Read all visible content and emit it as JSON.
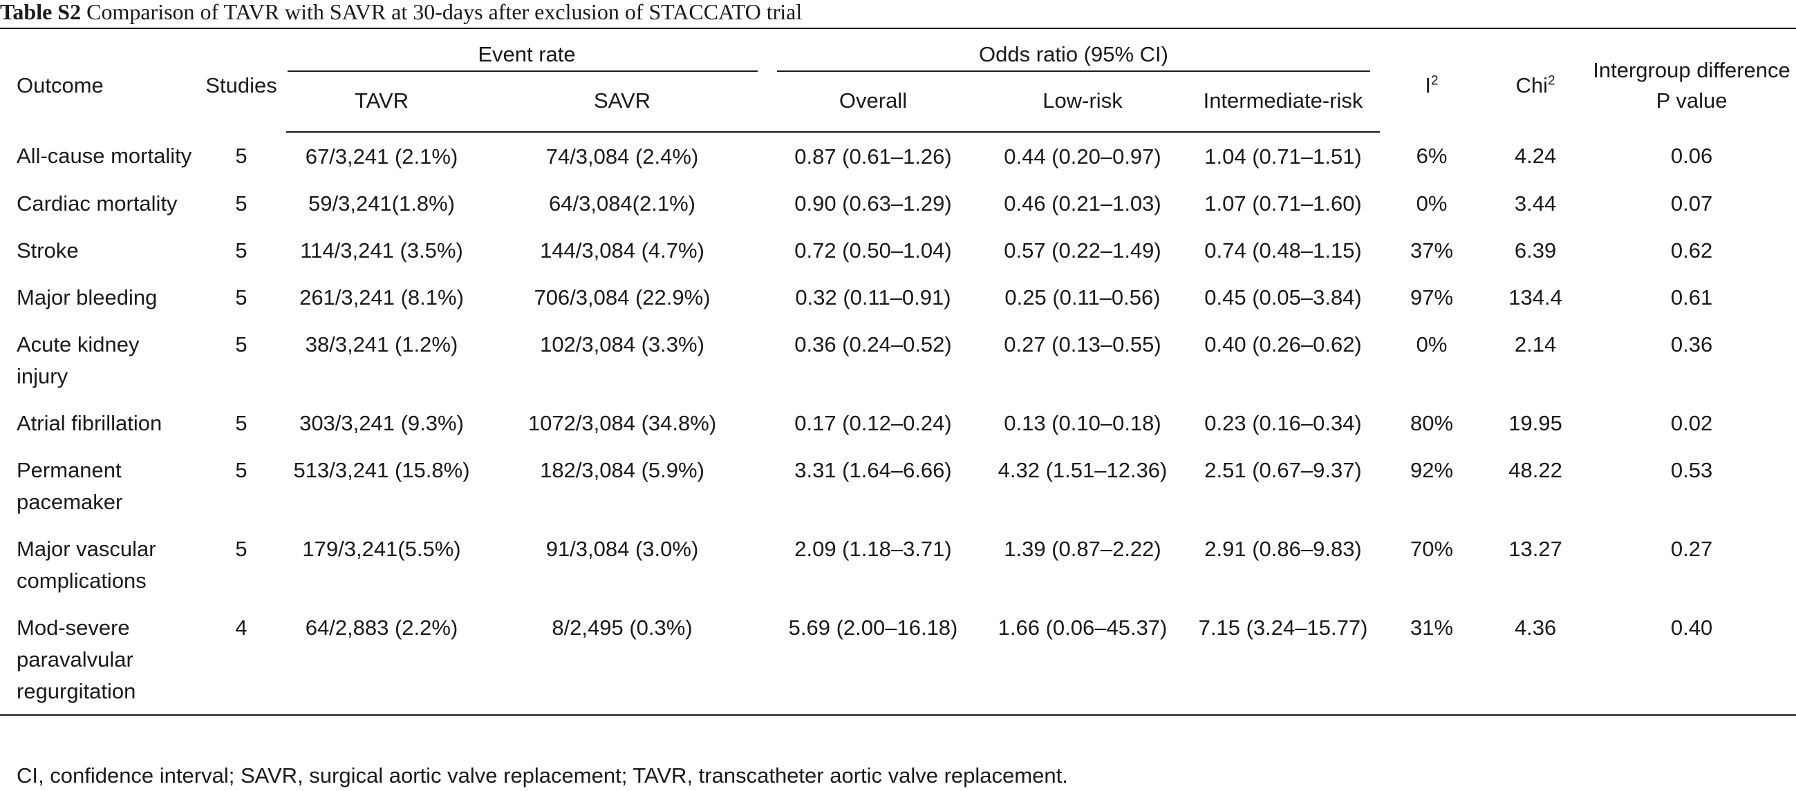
{
  "title": {
    "label": "Table S2",
    "text": "Comparison of TAVR with SAVR at 30-days after exclusion of STACCATO trial"
  },
  "headers": {
    "outcome": "Outcome",
    "studies": "Studies",
    "event_rate": "Event rate",
    "tavr": "TAVR",
    "savr": "SAVR",
    "odds_ratio": "Odds ratio (95% CI)",
    "overall": "Overall",
    "low_risk": "Low-risk",
    "intermediate_risk": "Intermediate-risk",
    "i2_base": "I",
    "i2_sup": "2",
    "chi2_base": "Chi",
    "chi2_sup": "2",
    "intergroup": "Intergroup difference P value"
  },
  "rows": [
    {
      "outcome": "All-cause mortality",
      "studies": "5",
      "tavr": "67/3,241 (2.1%)",
      "savr": "74/3,084 (2.4%)",
      "overall": "0.87 (0.61–1.26)",
      "low": "0.44 (0.20–0.97)",
      "intermediate": "1.04 (0.71–1.51)",
      "i2": "6%",
      "chi2": "4.24",
      "p": "0.06"
    },
    {
      "outcome": "Cardiac mortality",
      "studies": "5",
      "tavr": "59/3,241(1.8%)",
      "savr": "64/3,084(2.1%)",
      "overall": "0.90 (0.63–1.29)",
      "low": "0.46 (0.21–1.03)",
      "intermediate": "1.07 (0.71–1.60)",
      "i2": "0%",
      "chi2": "3.44",
      "p": "0.07"
    },
    {
      "outcome": "Stroke",
      "studies": "5",
      "tavr": "114/3,241 (3.5%)",
      "savr": "144/3,084 (4.7%)",
      "overall": "0.72 (0.50–1.04)",
      "low": "0.57 (0.22–1.49)",
      "intermediate": "0.74 (0.48–1.15)",
      "i2": "37%",
      "chi2": "6.39",
      "p": "0.62"
    },
    {
      "outcome": "Major bleeding",
      "studies": "5",
      "tavr": "261/3,241 (8.1%)",
      "savr": "706/3,084 (22.9%)",
      "overall": "0.32 (0.11–0.91)",
      "low": "0.25 (0.11–0.56)",
      "intermediate": "0.45 (0.05–3.84)",
      "i2": "97%",
      "chi2": "134.4",
      "p": "0.61"
    },
    {
      "outcome": "Acute kidney injury",
      "studies": "5",
      "tavr": "38/3,241 (1.2%)",
      "savr": "102/3,084 (3.3%)",
      "overall": "0.36 (0.24–0.52)",
      "low": "0.27 (0.13–0.55)",
      "intermediate": "0.40 (0.26–0.62)",
      "i2": "0%",
      "chi2": "2.14",
      "p": "0.36"
    },
    {
      "outcome": "Atrial fibrillation",
      "studies": "5",
      "tavr": "303/3,241 (9.3%)",
      "savr": "1072/3,084 (34.8%)",
      "overall": "0.17 (0.12–0.24)",
      "low": "0.13 (0.10–0.18)",
      "intermediate": "0.23 (0.16–0.34)",
      "i2": "80%",
      "chi2": "19.95",
      "p": "0.02"
    },
    {
      "outcome": "Permanent pacemaker",
      "studies": "5",
      "tavr": "513/3,241 (15.8%)",
      "savr": "182/3,084 (5.9%)",
      "overall": "3.31 (1.64–6.66)",
      "low": "4.32 (1.51–12.36)",
      "intermediate": "2.51 (0.67–9.37)",
      "i2": "92%",
      "chi2": "48.22",
      "p": "0.53"
    },
    {
      "outcome": "Major vascular complications",
      "studies": "5",
      "tavr": "179/3,241(5.5%)",
      "savr": "91/3,084 (3.0%)",
      "overall": "2.09 (1.18–3.71)",
      "low": "1.39 (0.87–2.22)",
      "intermediate": "2.91 (0.86–9.83)",
      "i2": "70%",
      "chi2": "13.27",
      "p": "0.27"
    },
    {
      "outcome": "Mod-severe paravalvular regurgitation",
      "studies": "4",
      "tavr": "64/2,883 (2.2%)",
      "savr": "8/2,495 (0.3%)",
      "overall": "5.69 (2.00–16.18)",
      "low": "1.66 (0.06–45.37)",
      "intermediate": "7.15 (3.24–15.77)",
      "i2": "31%",
      "chi2": "4.36",
      "p": "0.40"
    }
  ],
  "footnote": "CI, confidence interval; SAVR, surgical aortic valve replacement; TAVR, transcatheter aortic valve replacement."
}
